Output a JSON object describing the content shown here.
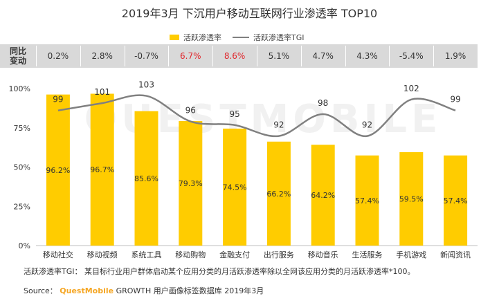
{
  "title": "2019年3月 下沉用户移动互联网行业渗透率 TOP10",
  "legend": {
    "bar_label": "活跃渗透率",
    "line_label": "活跃渗透率TGI"
  },
  "yoy": {
    "header_line1": "同比",
    "header_line2": "变动",
    "values": [
      "0.2%",
      "2.8%",
      "-0.7%",
      "6.7%",
      "8.6%",
      "5.1%",
      "4.7%",
      "4.3%",
      "-5.4%",
      "1.9%"
    ],
    "highlight_color": "#E0262B",
    "highlight_indices": [
      3,
      4
    ]
  },
  "watermark": "QUESTMOBILE",
  "footnote": "活跃渗透率TGI： 某目标行业用户群体启动某个应用分类的月活跃渗透率除以全网该应用分类的月活跃渗透率*100。",
  "source": {
    "prefix": "Source：",
    "brand": "QuestMobile",
    "rest": "GROWTH 用户画像标签数据库 2019年3月"
  },
  "colors": {
    "bar": "#FFCC00",
    "line": "#808080",
    "axis": "#BFBFBF"
  },
  "chart_data": {
    "type": "bar",
    "categories": [
      "移动社交",
      "移动视频",
      "系统工具",
      "移动购物",
      "金融支付",
      "出行服务",
      "移动音乐",
      "生活服务",
      "手机游戏",
      "新闻资讯"
    ],
    "series": [
      {
        "name": "活跃渗透率",
        "type": "bar",
        "values": [
          96.2,
          96.7,
          85.6,
          79.3,
          74.5,
          66.2,
          64.2,
          57.4,
          59.5,
          57.4
        ],
        "labels": [
          "96.2%",
          "96.7%",
          "85.6%",
          "79.3%",
          "74.5%",
          "66.2%",
          "64.2%",
          "57.4%",
          "59.5%",
          "57.4%"
        ]
      },
      {
        "name": "活跃渗透率TGI",
        "type": "line",
        "values": [
          99,
          101,
          103,
          96,
          95,
          92,
          98,
          92,
          102,
          99
        ]
      }
    ],
    "ylim": [
      0,
      100
    ],
    "yticks": [
      "0%",
      "25%",
      "50%",
      "75%",
      "100%"
    ],
    "grid": false,
    "legend_position": "top"
  }
}
